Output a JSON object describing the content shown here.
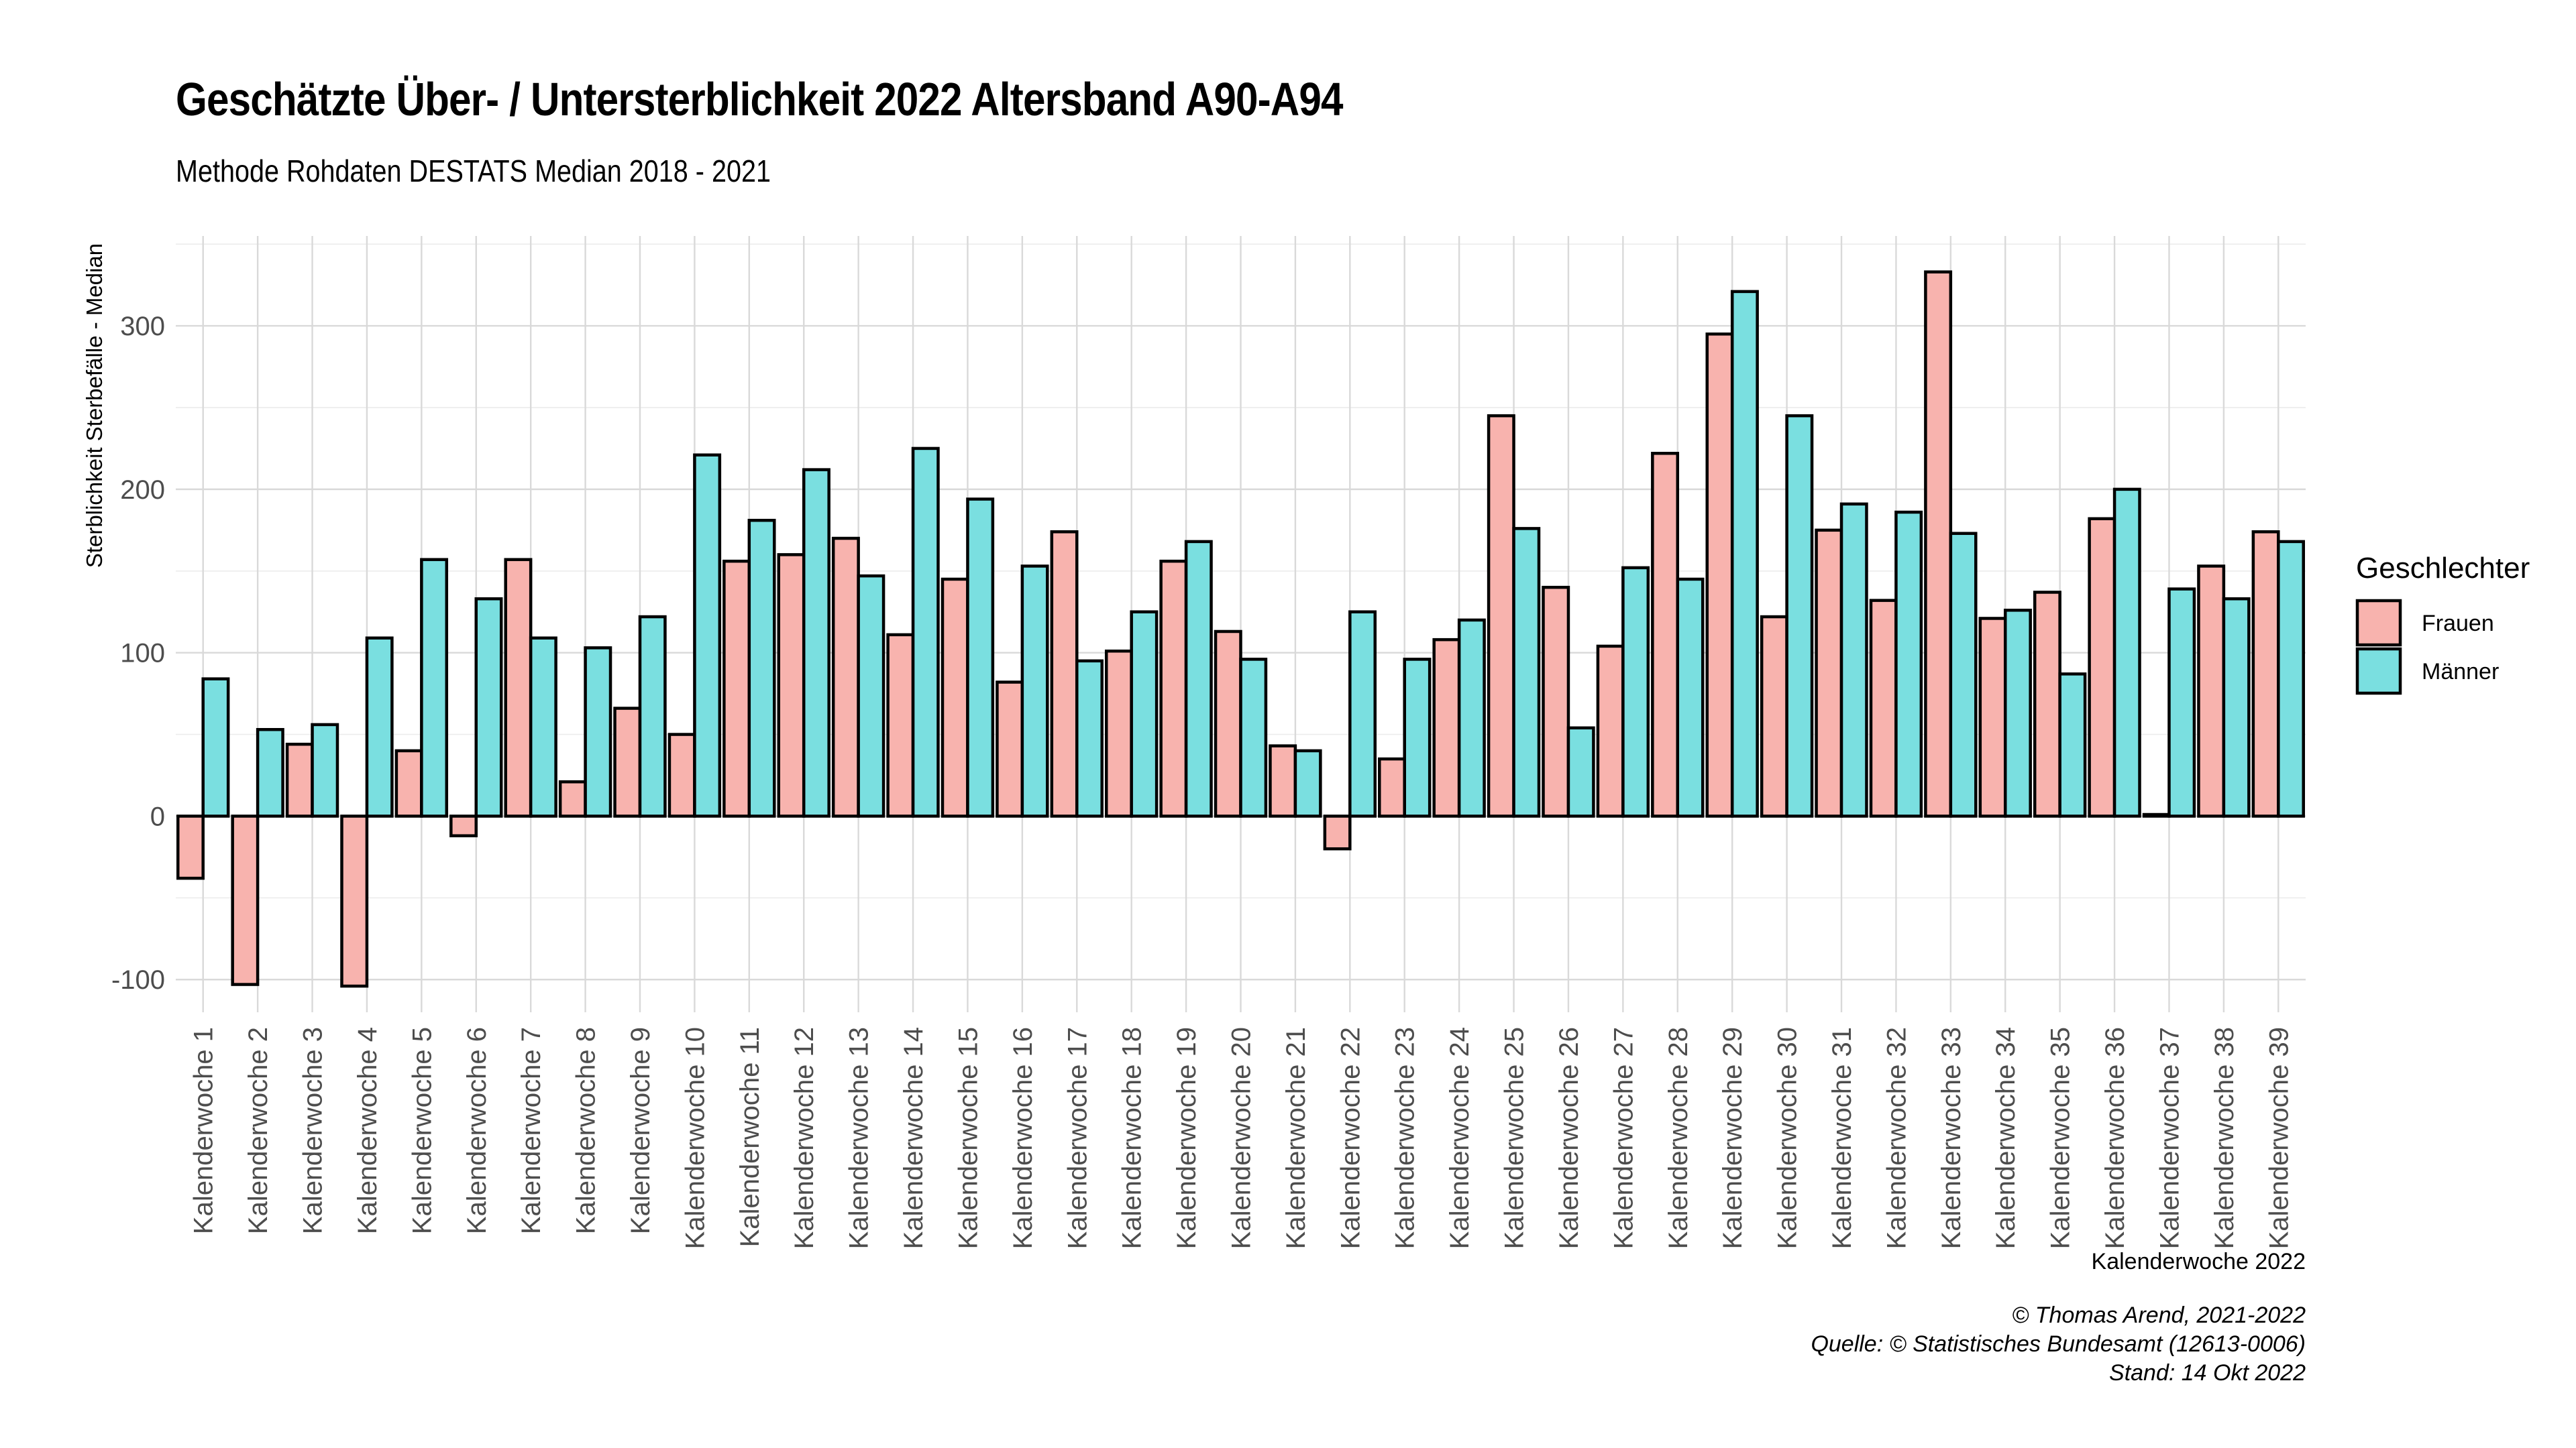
{
  "title": "Geschätzte Über- / Untersterblichkeit 2022 Altersband A90-A94",
  "subtitle": "Methode Rohdaten DESTATS Median 2018 - 2021",
  "caption": [
    "© Thomas Arend, 2021-2022",
    "Quelle: © Statistisches Bundesamt (12613-0006)",
    "Stand: 14 Okt 2022"
  ],
  "colors": {
    "Frauen": "#F8B3AE",
    "Männer": "#7ADFE0"
  },
  "chart_data": {
    "type": "bar",
    "xlabel": "Kalenderwoche 2022",
    "ylabel": "Sterblichkeit Sterbefälle - Median",
    "ylim": [
      -120,
      355
    ],
    "yticks": [
      -100,
      0,
      100,
      200,
      300
    ],
    "ytick_labels": [
      "-100",
      "0",
      "100",
      "200",
      "300"
    ],
    "grid": true,
    "legend": {
      "title": "Geschlechter",
      "position": "right"
    },
    "categories": [
      "Kalenderwoche 1",
      "Kalenderwoche 2",
      "Kalenderwoche 3",
      "Kalenderwoche 4",
      "Kalenderwoche 5",
      "Kalenderwoche 6",
      "Kalenderwoche 7",
      "Kalenderwoche 8",
      "Kalenderwoche 9",
      "Kalenderwoche 10",
      "Kalenderwoche 11",
      "Kalenderwoche 12",
      "Kalenderwoche 13",
      "Kalenderwoche 14",
      "Kalenderwoche 15",
      "Kalenderwoche 16",
      "Kalenderwoche 17",
      "Kalenderwoche 18",
      "Kalenderwoche 19",
      "Kalenderwoche 20",
      "Kalenderwoche 21",
      "Kalenderwoche 22",
      "Kalenderwoche 23",
      "Kalenderwoche 24",
      "Kalenderwoche 25",
      "Kalenderwoche 26",
      "Kalenderwoche 27",
      "Kalenderwoche 28",
      "Kalenderwoche 29",
      "Kalenderwoche 30",
      "Kalenderwoche 31",
      "Kalenderwoche 32",
      "Kalenderwoche 33",
      "Kalenderwoche 34",
      "Kalenderwoche 35",
      "Kalenderwoche 36",
      "Kalenderwoche 37",
      "Kalenderwoche 38",
      "Kalenderwoche 39"
    ],
    "series": [
      {
        "name": "Frauen",
        "values": [
          -38,
          -103,
          44,
          -104,
          40,
          -12,
          157,
          21,
          66,
          50,
          156,
          160,
          170,
          111,
          145,
          82,
          174,
          101,
          156,
          113,
          43,
          -20,
          35,
          108,
          245,
          140,
          104,
          222,
          295,
          122,
          175,
          132,
          333,
          121,
          137,
          182,
          1,
          153,
          174
        ]
      },
      {
        "name": "Männer",
        "values": [
          84,
          53,
          56,
          109,
          157,
          133,
          109,
          103,
          122,
          221,
          181,
          212,
          147,
          225,
          194,
          153,
          95,
          125,
          168,
          96,
          40,
          125,
          96,
          120,
          176,
          54,
          152,
          145,
          321,
          245,
          191,
          186,
          173,
          126,
          87,
          200,
          139,
          133,
          168
        ]
      }
    ]
  }
}
